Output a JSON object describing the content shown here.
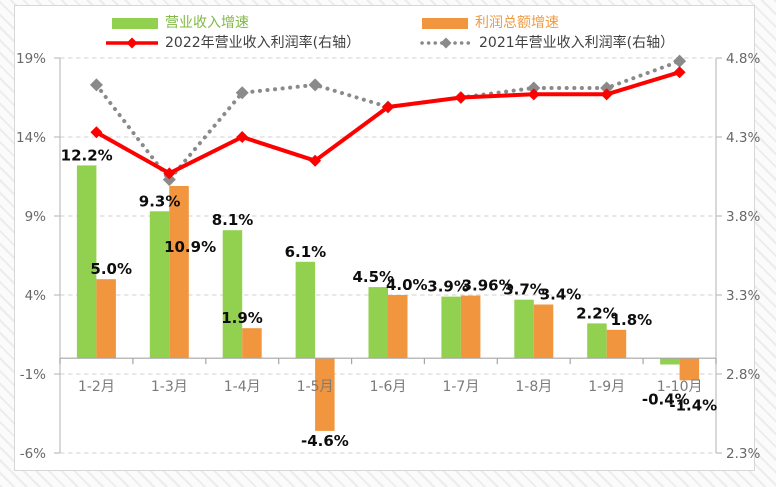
{
  "chart_data": {
    "type": "combo-bar-line",
    "categories": [
      "1-2月",
      "1-3月",
      "1-4月",
      "1-5月",
      "1-6月",
      "1-7月",
      "1-8月",
      "1-9月",
      "1-10月"
    ],
    "series": [
      {
        "name": "营业收入增速",
        "type": "bar",
        "axis": "left",
        "color": "#92d050",
        "label_color": "#80b945",
        "values": [
          12.2,
          9.3,
          8.1,
          6.1,
          4.5,
          3.9,
          3.7,
          2.2,
          -0.4
        ],
        "labels": [
          "12.2%",
          "9.3%",
          "8.1%",
          "6.1%",
          "4.5%",
          "3.9%",
          "3.7%",
          "2.2%",
          "-0.4%"
        ]
      },
      {
        "name": "利润总额增速",
        "type": "bar",
        "axis": "left",
        "color": "#f2953f",
        "label_color": "#ef9b43",
        "values": [
          5.0,
          10.9,
          1.9,
          -4.6,
          4.0,
          3.96,
          3.4,
          1.8,
          -1.4
        ],
        "labels": [
          "5.0%",
          "10.9%",
          "1.9%",
          "-4.6%",
          "4.0%",
          "3.96%",
          "3.4%",
          "1.8%",
          "-1.4%"
        ]
      },
      {
        "name": "2022年营业收入利润率(右轴）",
        "type": "line",
        "line_style": "solid",
        "marker": "diamond",
        "axis": "right",
        "color": "#fe0000",
        "label_color": "#404040",
        "values": [
          4.33,
          4.07,
          4.3,
          4.15,
          4.49,
          4.55,
          4.57,
          4.57,
          4.71
        ]
      },
      {
        "name": "2021年营业收入利润率(右轴）",
        "type": "line",
        "line_style": "dotted",
        "marker": "diamond",
        "axis": "right",
        "color": "#8a8a8a",
        "label_color": "#404040",
        "values": [
          4.63,
          4.03,
          4.58,
          4.63,
          4.49,
          4.55,
          4.61,
          4.61,
          4.78
        ]
      }
    ],
    "left_axis": {
      "ticks": [
        "19%",
        "14%",
        "9%",
        "4%",
        "-1%",
        "-6%"
      ],
      "min": -6,
      "max": 19
    },
    "right_axis": {
      "ticks": [
        "4.8%",
        "4.3%",
        "3.8%",
        "3.3%",
        "2.8%",
        "2.3%"
      ],
      "min": 2.3,
      "max": 4.8
    },
    "legend_position": "top",
    "grid": "horizontal-dashed"
  }
}
